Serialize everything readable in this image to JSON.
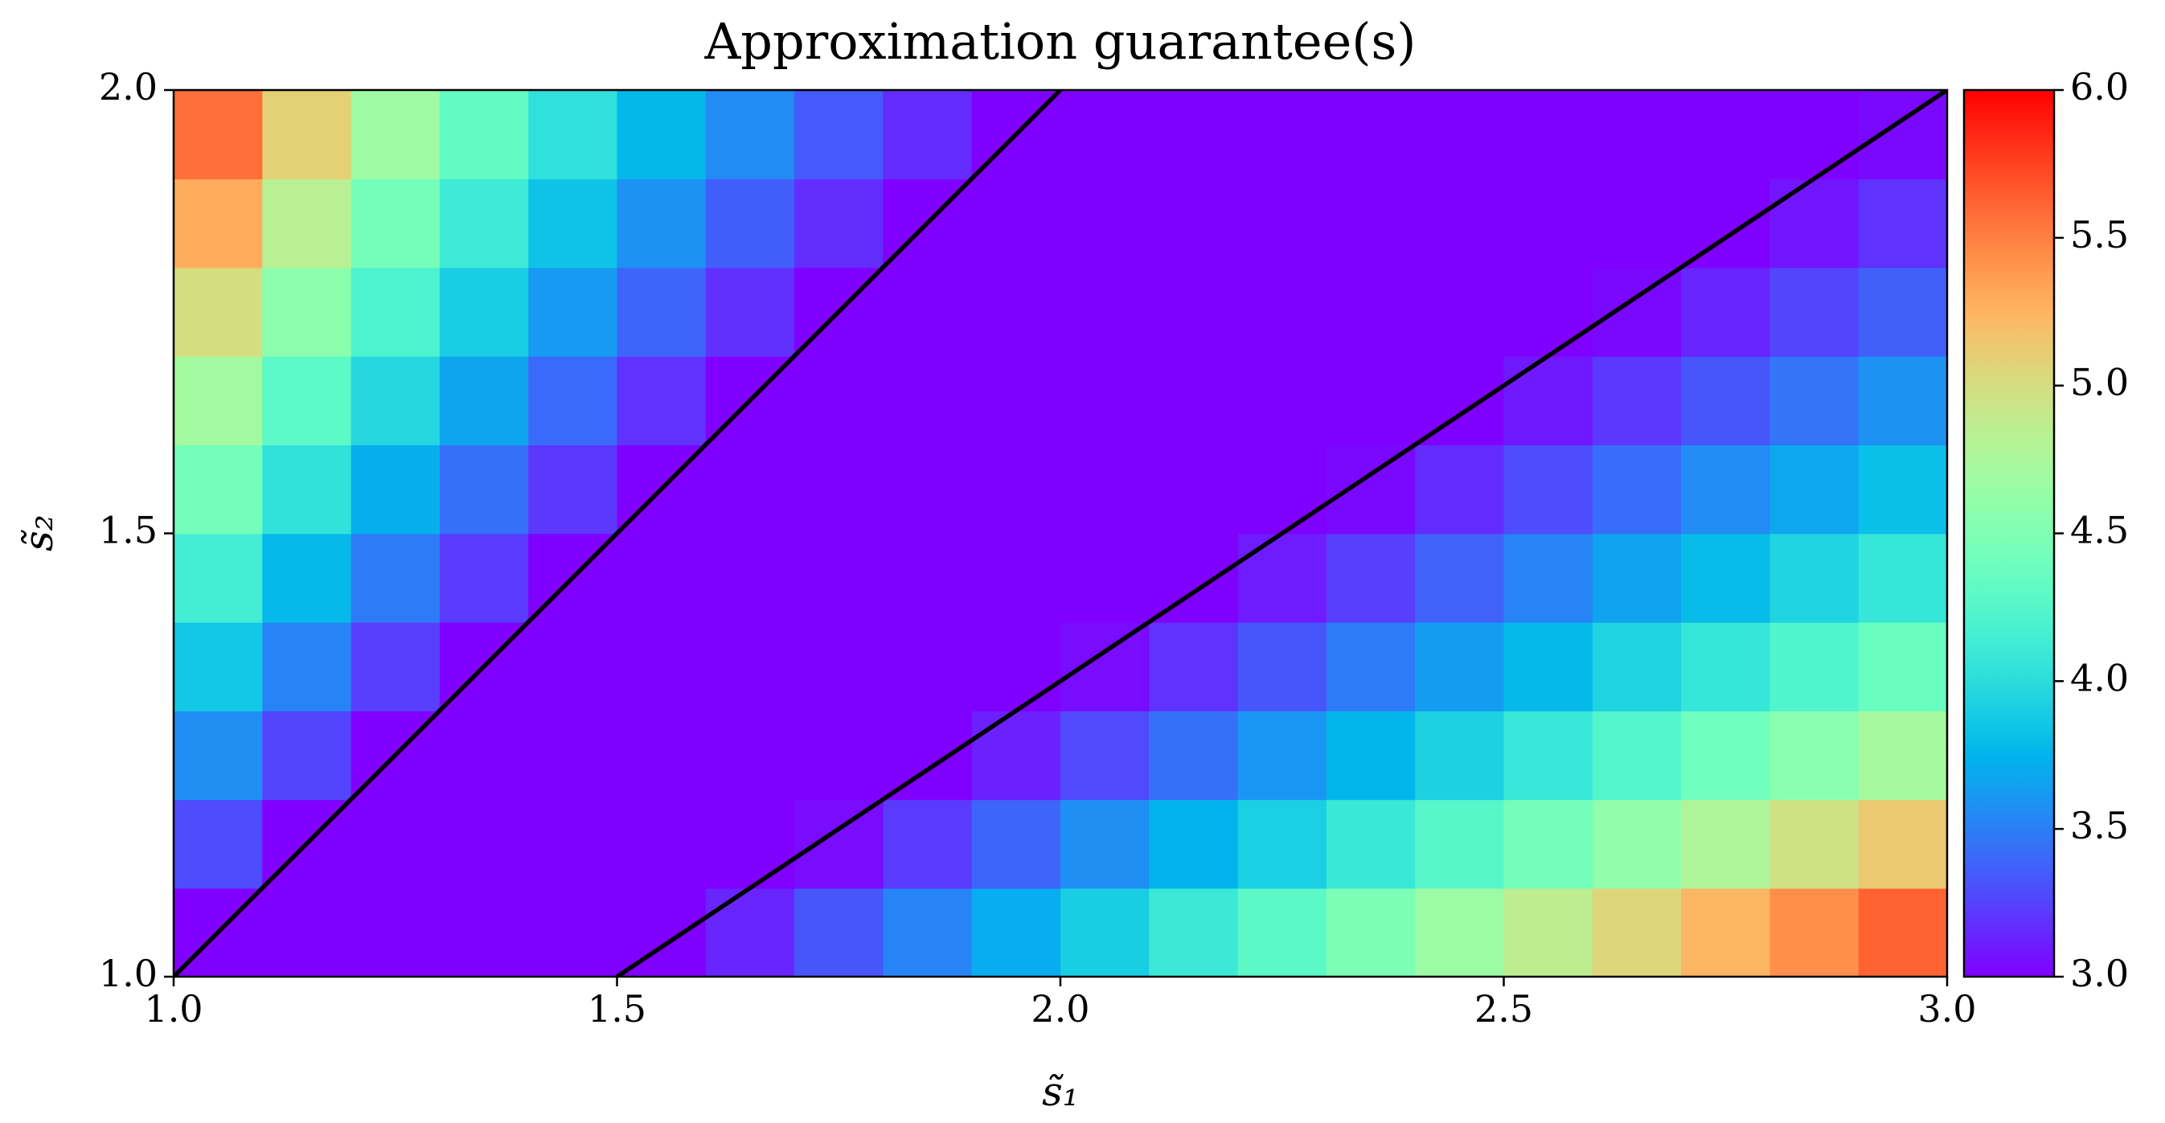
{
  "chart_data": {
    "type": "heatmap",
    "title": "Approximation guarantee(s)",
    "x_label": "s̃₁",
    "y_label": "s̃₂",
    "colormap": "rainbow",
    "xlim": [
      1,
      3
    ],
    "ylim": [
      1,
      2
    ],
    "clim": [
      3,
      6
    ],
    "xticks": [
      {
        "value": 1,
        "label": "1.0"
      },
      {
        "value": 1.5,
        "label": "1.5"
      },
      {
        "value": 2,
        "label": "2.0"
      },
      {
        "value": 2.5,
        "label": "2.5"
      },
      {
        "value": 3,
        "label": "3.0"
      }
    ],
    "yticks": [
      {
        "value": 1,
        "label": "1.0"
      },
      {
        "value": 1.5,
        "label": "1.5"
      },
      {
        "value": 2,
        "label": "2.0"
      }
    ],
    "cticks": [
      {
        "value": 3,
        "label": "3.0"
      },
      {
        "value": 3.5,
        "label": "3.5"
      },
      {
        "value": 4,
        "label": "4.0"
      },
      {
        "value": 4.5,
        "label": "4.5"
      },
      {
        "value": 5,
        "label": "5.0"
      },
      {
        "value": 5.5,
        "label": "5.5"
      },
      {
        "value": 6,
        "label": "6.0"
      }
    ],
    "x": [
      1.05,
      1.15,
      1.25,
      1.35,
      1.45,
      1.55,
      1.65,
      1.75,
      1.85,
      1.95,
      2.05,
      2.15,
      2.25,
      2.35,
      2.45,
      2.55,
      2.65,
      2.75,
      2.85,
      2.95
    ],
    "y": [
      1.05,
      1.15,
      1.25,
      1.35,
      1.45,
      1.55,
      1.65,
      1.75,
      1.85,
      1.95
    ],
    "z": [
      [
        3,
        3,
        3,
        3,
        3,
        3,
        3.14,
        3.33,
        3.52,
        3.71,
        3.9,
        4.1,
        4.29,
        4.48,
        4.67,
        4.86,
        5.05,
        5.24,
        5.43,
        5.62
      ],
      [
        3.29,
        3,
        3,
        3,
        3,
        3,
        3,
        3.04,
        3.22,
        3.39,
        3.57,
        3.74,
        3.91,
        4.09,
        4.26,
        4.43,
        4.61,
        4.78,
        4.96,
        5.13
      ],
      [
        3.57,
        3.26,
        3,
        3,
        3,
        3,
        3,
        3,
        3,
        3.12,
        3.28,
        3.44,
        3.6,
        3.76,
        3.92,
        4.08,
        4.24,
        4.4,
        4.56,
        4.72
      ],
      [
        3.86,
        3.52,
        3.24,
        3,
        3,
        3,
        3,
        3,
        3,
        3,
        3.04,
        3.19,
        3.33,
        3.48,
        3.63,
        3.78,
        3.93,
        4.07,
        4.22,
        4.37
      ],
      [
        4.14,
        3.78,
        3.48,
        3.22,
        3,
        3,
        3,
        3,
        3,
        3,
        3,
        3,
        3.1,
        3.24,
        3.38,
        3.52,
        3.66,
        3.79,
        3.93,
        4.07
      ],
      [
        4.43,
        4.04,
        3.72,
        3.44,
        3.21,
        3,
        3,
        3,
        3,
        3,
        3,
        3,
        3,
        3.03,
        3.16,
        3.29,
        3.42,
        3.55,
        3.68,
        3.81
      ],
      [
        4.71,
        4.3,
        3.96,
        3.67,
        3.41,
        3.19,
        3,
        3,
        3,
        3,
        3,
        3,
        3,
        3,
        3,
        3.09,
        3.21,
        3.33,
        3.45,
        3.58
      ],
      [
        5.0,
        4.57,
        4.2,
        3.89,
        3.62,
        3.39,
        3.18,
        3,
        3,
        3,
        3,
        3,
        3,
        3,
        3,
        3,
        3.03,
        3.14,
        3.26,
        3.37
      ],
      [
        5.29,
        4.83,
        4.44,
        4.11,
        3.83,
        3.58,
        3.36,
        3.17,
        3,
        3,
        3,
        3,
        3,
        3,
        3,
        3,
        3,
        3,
        3.08,
        3.19
      ],
      [
        5.57,
        5.09,
        4.68,
        4.33,
        4.03,
        3.77,
        3.55,
        3.34,
        3.16,
        3,
        3,
        3,
        3,
        3,
        3,
        3,
        3,
        3,
        3,
        3.03
      ]
    ],
    "lines": [
      {
        "color": "#000000",
        "x": [
          1,
          2
        ],
        "y": [
          1,
          2
        ]
      },
      {
        "color": "#000000",
        "x": [
          1.5,
          3
        ],
        "y": [
          1,
          2
        ]
      }
    ]
  }
}
